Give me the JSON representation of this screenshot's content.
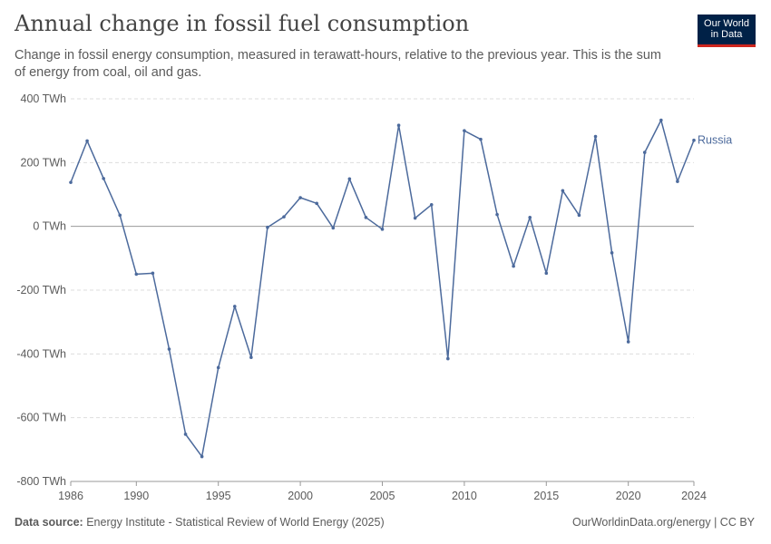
{
  "header": {
    "title": "Annual change in fossil fuel consumption",
    "subtitle": "Change in fossil energy consumption, measured in terawatt-hours, relative to the previous year. This is the sum of energy from coal, oil and gas.",
    "logo_line1": "Our World",
    "logo_line2": "in Data"
  },
  "footer": {
    "source_label": "Data source:",
    "source_text": "Energy Institute - Statistical Review of World Energy (2025)",
    "right_text": "OurWorldinData.org/energy | CC BY"
  },
  "colors": {
    "series": "#4c6a9c",
    "grid": "#dddddd",
    "zero": "#999999",
    "text": "#5b5b5b"
  },
  "chart_data": {
    "type": "line",
    "title": "Annual change in fossil fuel consumption",
    "xlabel": "",
    "ylabel": "",
    "xlim": [
      1986,
      2024
    ],
    "ylim": [
      -800,
      400
    ],
    "yticks": [
      400,
      200,
      0,
      -200,
      -400,
      -600,
      -800
    ],
    "ytick_labels": [
      "400 TWh",
      "200 TWh",
      "0 TWh",
      "-200 TWh",
      "-400 TWh",
      "-600 TWh",
      "-800 TWh"
    ],
    "xticks": [
      1986,
      1990,
      1995,
      2000,
      2005,
      2010,
      2015,
      2020,
      2024
    ],
    "xtick_labels": [
      "1986",
      "1990",
      "1995",
      "2000",
      "2005",
      "2010",
      "2015",
      "2020",
      "2024"
    ],
    "grid": true,
    "legend": "end-of-line label",
    "series": [
      {
        "name": "Russia",
        "x": [
          1986,
          1987,
          1988,
          1989,
          1990,
          1991,
          1992,
          1993,
          1994,
          1995,
          1996,
          1997,
          1998,
          1999,
          2000,
          2001,
          2002,
          2003,
          2004,
          2005,
          2006,
          2007,
          2008,
          2009,
          2010,
          2011,
          2012,
          2013,
          2014,
          2015,
          2016,
          2017,
          2018,
          2019,
          2020,
          2021,
          2022,
          2023,
          2024
        ],
        "values": [
          138,
          268,
          150,
          35,
          -150,
          -147,
          -385,
          -652,
          -722,
          -443,
          -251,
          -411,
          -3,
          30,
          90,
          72,
          -5,
          149,
          28,
          -9,
          317,
          26,
          68,
          -415,
          300,
          273,
          37,
          -125,
          28,
          -147,
          112,
          35,
          282,
          -83,
          -362,
          232,
          333,
          141,
          270
        ]
      }
    ]
  }
}
